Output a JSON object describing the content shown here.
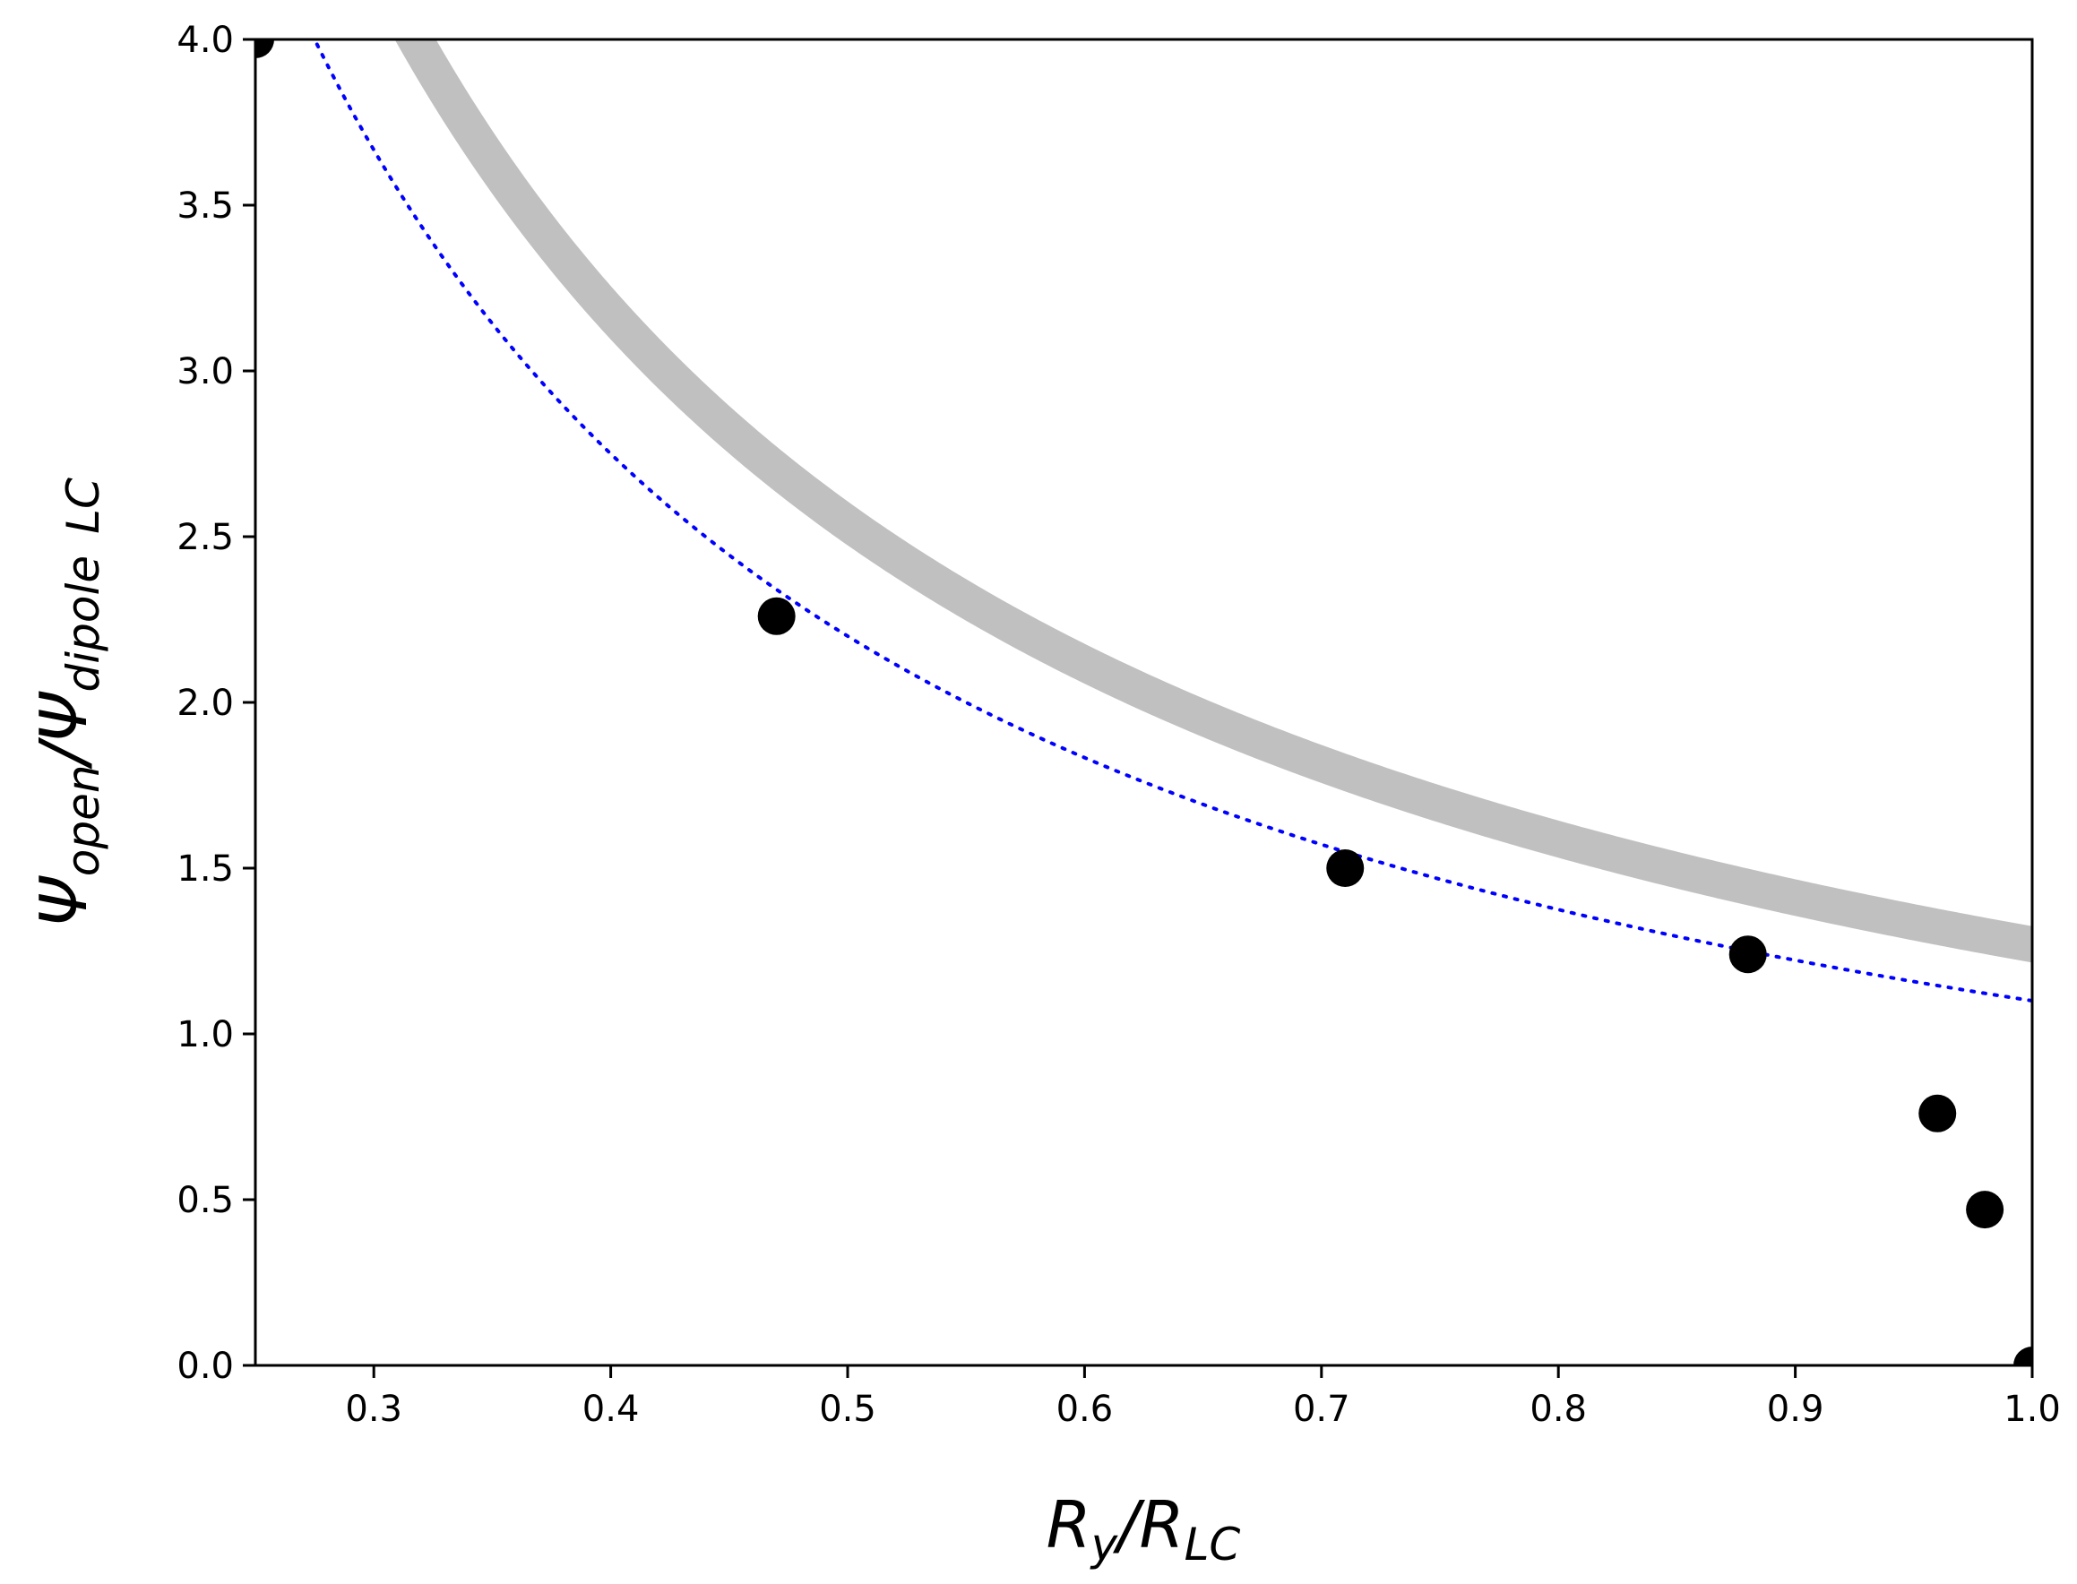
{
  "chart_data": {
    "type": "scatter",
    "title": "",
    "xlabel": {
      "main": "R",
      "sub1": "y",
      "sep": "/R",
      "sub2": "LC"
    },
    "ylabel": {
      "main": "Ψ",
      "sub1": "open",
      "sep": "/Ψ",
      "sub2": "dipole",
      "sub3": "LC"
    },
    "xlim": [
      0.25,
      1.0
    ],
    "ylim": [
      0.0,
      4.0
    ],
    "xticks": [
      "0.3",
      "0.4",
      "0.5",
      "0.6",
      "0.7",
      "0.8",
      "0.9",
      "1.0"
    ],
    "yticks": [
      "0.0",
      "0.5",
      "1.0",
      "1.5",
      "2.0",
      "2.5",
      "3.0",
      "3.5",
      "4.0"
    ],
    "grid": false,
    "points": [
      {
        "x": 0.25,
        "y": 4.0
      },
      {
        "x": 0.47,
        "y": 2.26
      },
      {
        "x": 0.71,
        "y": 1.5
      },
      {
        "x": 0.88,
        "y": 1.24
      },
      {
        "x": 0.96,
        "y": 0.76
      },
      {
        "x": 0.98,
        "y": 0.47
      },
      {
        "x": 1.0,
        "y": 0.0
      }
    ],
    "curves": {
      "gray_band_coefficient": 1.27,
      "blue_dotted_coefficient": 1.1,
      "form": "y = a / x"
    },
    "colors": {
      "points": "#000000",
      "gray_band": "#c0c0c0",
      "blue_dotted": "#0000ff",
      "axes": "#000000"
    }
  }
}
